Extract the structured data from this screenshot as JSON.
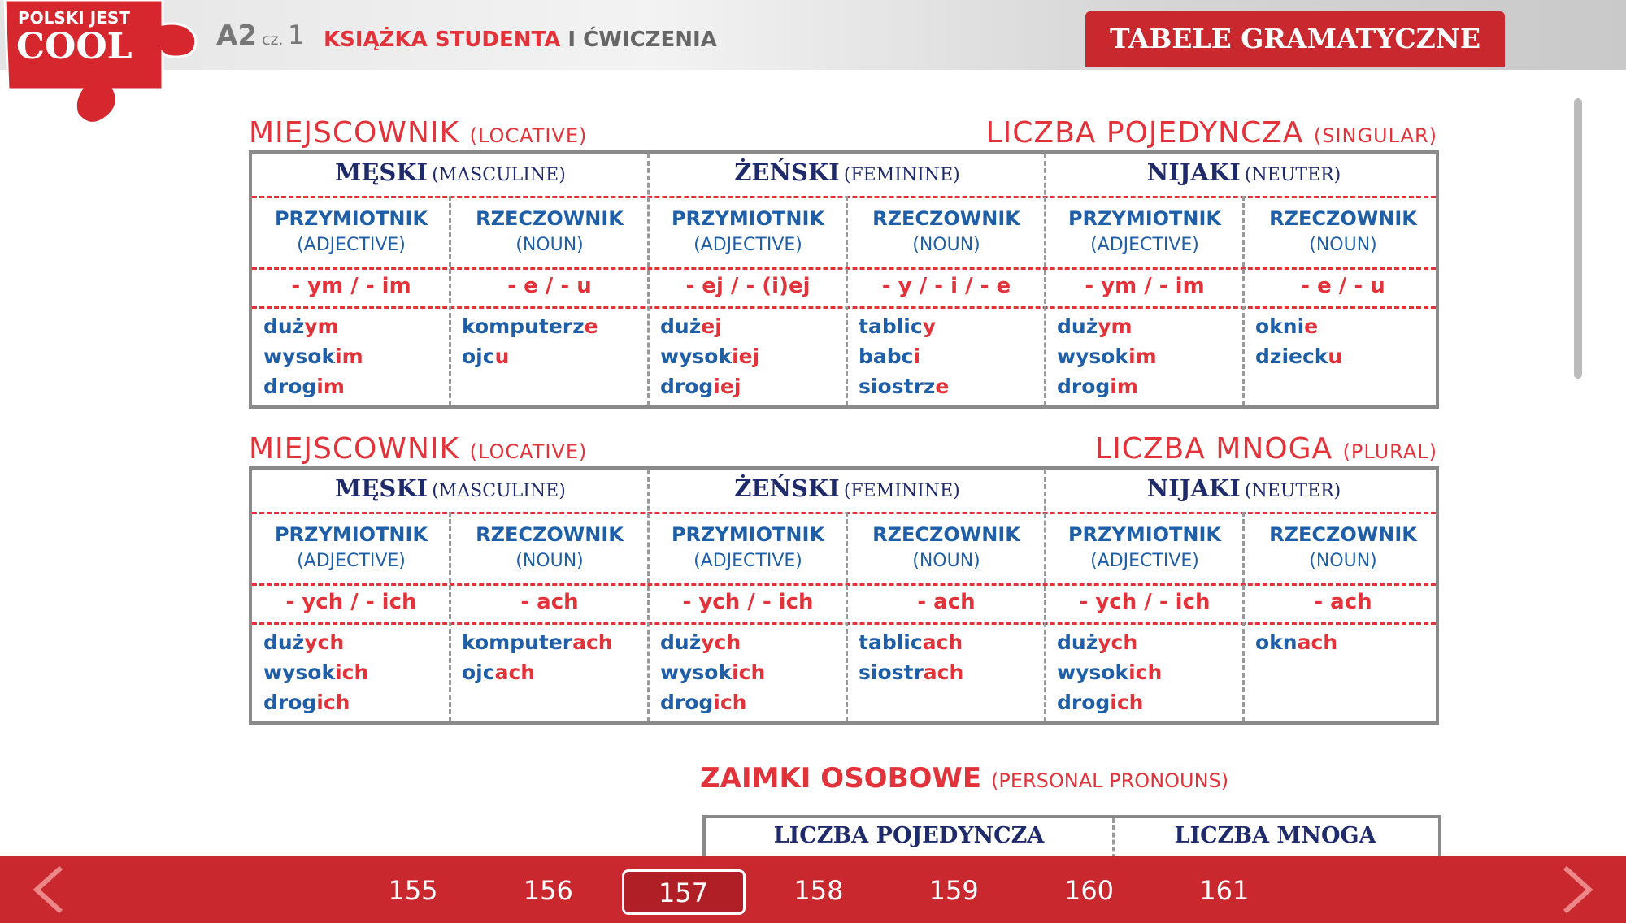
{
  "header": {
    "logo_top": "POLSKI JEST",
    "logo_main": "COOL",
    "level": "A2",
    "part_prefix": "cz.",
    "part": "1",
    "book_red": "KSIĄŻKA STUDENTA",
    "book_gray": "I ĆWICZENIA",
    "button": "TABELE GRAMATYCZNE"
  },
  "tables": [
    {
      "case": "MIEJSCOWNIK",
      "case_en": "(LOCATIVE)",
      "number": "LICZBA POJEDYNCZA",
      "number_en": "(SINGULAR)",
      "genders": [
        {
          "label": "MĘSKI",
          "en": "(MASCULINE)"
        },
        {
          "label": "ŻEŃSKI",
          "en": "(FEMININE)"
        },
        {
          "label": "NIJAKI",
          "en": "(NEUTER)"
        }
      ],
      "columns": [
        {
          "label": "PRZYMIOTNIK",
          "en": "(ADJECTIVE)",
          "ending": "- ym / - im",
          "words": [
            [
              "duż",
              "ym"
            ],
            [
              "wysok",
              "im"
            ],
            [
              "drog",
              "im"
            ]
          ]
        },
        {
          "label": "RZECZOWNIK",
          "en": "(NOUN)",
          "ending": "- e / - u",
          "words": [
            [
              "komputerz",
              "e"
            ],
            [
              "ojc",
              "u"
            ]
          ]
        },
        {
          "label": "PRZYMIOTNIK",
          "en": "(ADJECTIVE)",
          "ending": "- ej / - (i)ej",
          "words": [
            [
              "duż",
              "ej"
            ],
            [
              "wysok",
              "iej"
            ],
            [
              "drog",
              "iej"
            ]
          ]
        },
        {
          "label": "RZECZOWNIK",
          "en": "(NOUN)",
          "ending": "- y / - i / - e",
          "words": [
            [
              "tablic",
              "y"
            ],
            [
              "babc",
              "i"
            ],
            [
              "siostrz",
              "e"
            ]
          ]
        },
        {
          "label": "PRZYMIOTNIK",
          "en": "(ADJECTIVE)",
          "ending": "- ym / - im",
          "words": [
            [
              "duż",
              "ym"
            ],
            [
              "wysok",
              "im"
            ],
            [
              "drog",
              "im"
            ]
          ]
        },
        {
          "label": "RZECZOWNIK",
          "en": "(NOUN)",
          "ending": "- e / - u",
          "words": [
            [
              "okni",
              "e"
            ],
            [
              "dzieck",
              "u"
            ]
          ]
        }
      ]
    },
    {
      "case": "MIEJSCOWNIK",
      "case_en": "(LOCATIVE)",
      "number": "LICZBA MNOGA",
      "number_en": "(PLURAL)",
      "genders": [
        {
          "label": "MĘSKI",
          "en": "(MASCULINE)"
        },
        {
          "label": "ŻEŃSKI",
          "en": "(FEMININE)"
        },
        {
          "label": "NIJAKI",
          "en": "(NEUTER)"
        }
      ],
      "columns": [
        {
          "label": "PRZYMIOTNIK",
          "en": "(ADJECTIVE)",
          "ending": "- ych / - ich",
          "words": [
            [
              "duż",
              "ych"
            ],
            [
              "wysok",
              "ich"
            ],
            [
              "drog",
              "ich"
            ]
          ]
        },
        {
          "label": "RZECZOWNIK",
          "en": "(NOUN)",
          "ending": "- ach",
          "words": [
            [
              "komputer",
              "ach"
            ],
            [
              "ojc",
              "ach"
            ]
          ]
        },
        {
          "label": "PRZYMIOTNIK",
          "en": "(ADJECTIVE)",
          "ending": "- ych / - ich",
          "words": [
            [
              "duż",
              "ych"
            ],
            [
              "wysok",
              "ich"
            ],
            [
              "drog",
              "ich"
            ]
          ]
        },
        {
          "label": "RZECZOWNIK",
          "en": "(NOUN)",
          "ending": "- ach",
          "words": [
            [
              "tablic",
              "ach"
            ],
            [
              "siostr",
              "ach"
            ]
          ]
        },
        {
          "label": "PRZYMIOTNIK",
          "en": "(ADJECTIVE)",
          "ending": "- ych / - ich",
          "words": [
            [
              "duż",
              "ych"
            ],
            [
              "wysok",
              "ich"
            ],
            [
              "drog",
              "ich"
            ]
          ]
        },
        {
          "label": "RZECZOWNIK",
          "en": "(NOUN)",
          "ending": "- ach",
          "words": [
            [
              "okn",
              "ach"
            ]
          ]
        }
      ]
    }
  ],
  "pronouns": {
    "title": "ZAIMKI OSOBOWE",
    "title_en": "(PERSONAL PRONOUNS)",
    "headers": [
      "LICZBA POJEDYNCZA",
      "LICZBA MNOGA"
    ]
  },
  "footer": {
    "pages": [
      155,
      156,
      157,
      158,
      159,
      160,
      161
    ],
    "selected": 2
  }
}
